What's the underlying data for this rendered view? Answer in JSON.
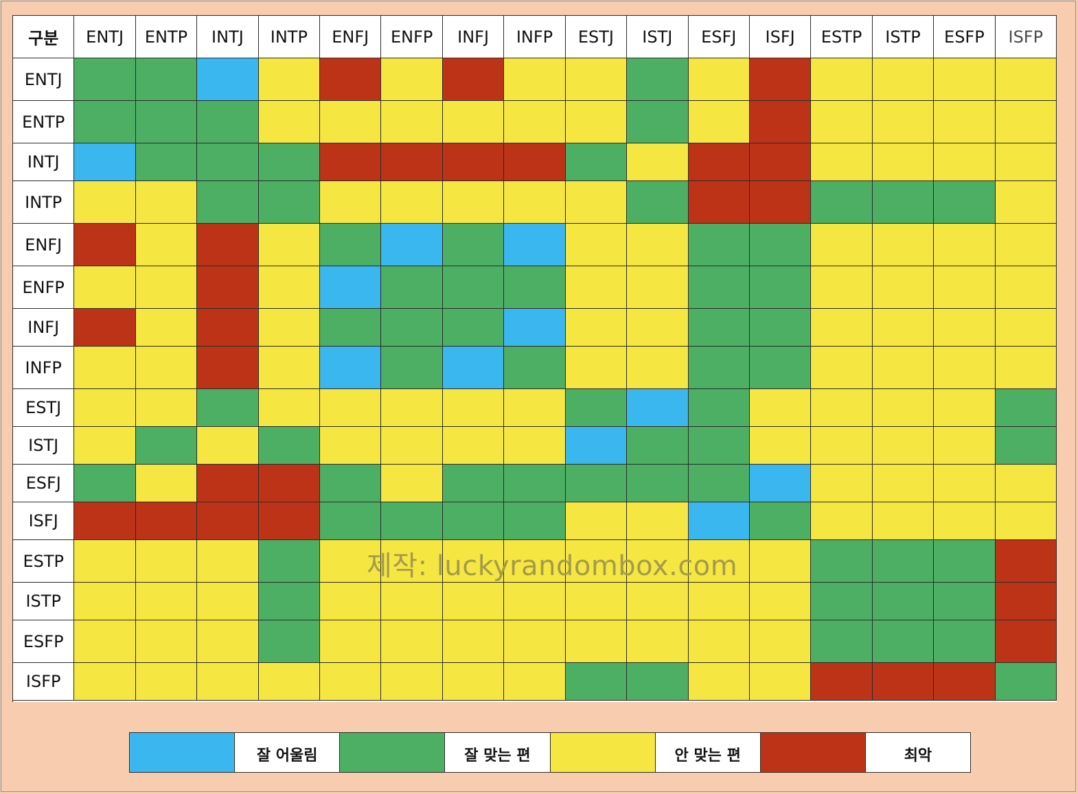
{
  "chart_data": {
    "type": "heatmap",
    "corner_label": "구분",
    "types": [
      "ENTJ",
      "ENTP",
      "INTJ",
      "INTP",
      "ENFJ",
      "ENFP",
      "INFJ",
      "INFP",
      "ESTJ",
      "ISTJ",
      "ESFJ",
      "ISFJ",
      "ESTP",
      "ISTP",
      "ESFP",
      "ISFP"
    ],
    "levels": [
      {
        "code": "B",
        "label": "잘 어울림",
        "color": "#3bb7f0"
      },
      {
        "code": "G",
        "label": "잘 맞는 편",
        "color": "#4caf64"
      },
      {
        "code": "Y",
        "label": "안 맞는 편",
        "color": "#f5e642"
      },
      {
        "code": "R",
        "label": "최악",
        "color": "#bc3318"
      }
    ],
    "matrix": [
      [
        "G",
        "G",
        "B",
        "Y",
        "R",
        "Y",
        "R",
        "Y",
        "Y",
        "G",
        "Y",
        "R",
        "Y",
        "Y",
        "Y",
        "Y"
      ],
      [
        "G",
        "G",
        "G",
        "Y",
        "Y",
        "Y",
        "Y",
        "Y",
        "Y",
        "G",
        "Y",
        "R",
        "Y",
        "Y",
        "Y",
        "Y"
      ],
      [
        "B",
        "G",
        "G",
        "G",
        "R",
        "R",
        "R",
        "R",
        "G",
        "Y",
        "R",
        "R",
        "Y",
        "Y",
        "Y",
        "Y"
      ],
      [
        "Y",
        "Y",
        "G",
        "G",
        "Y",
        "Y",
        "Y",
        "Y",
        "Y",
        "G",
        "R",
        "R",
        "G",
        "G",
        "G",
        "Y"
      ],
      [
        "R",
        "Y",
        "R",
        "Y",
        "G",
        "B",
        "G",
        "B",
        "Y",
        "Y",
        "G",
        "G",
        "Y",
        "Y",
        "Y",
        "Y"
      ],
      [
        "Y",
        "Y",
        "R",
        "Y",
        "B",
        "G",
        "G",
        "G",
        "Y",
        "Y",
        "G",
        "G",
        "Y",
        "Y",
        "Y",
        "Y"
      ],
      [
        "R",
        "Y",
        "R",
        "Y",
        "G",
        "G",
        "G",
        "B",
        "Y",
        "Y",
        "G",
        "G",
        "Y",
        "Y",
        "Y",
        "Y"
      ],
      [
        "Y",
        "Y",
        "R",
        "Y",
        "B",
        "G",
        "B",
        "G",
        "Y",
        "Y",
        "G",
        "G",
        "Y",
        "Y",
        "Y",
        "Y"
      ],
      [
        "Y",
        "Y",
        "G",
        "Y",
        "Y",
        "Y",
        "Y",
        "Y",
        "G",
        "B",
        "G",
        "Y",
        "Y",
        "Y",
        "Y",
        "G"
      ],
      [
        "Y",
        "G",
        "Y",
        "G",
        "Y",
        "Y",
        "Y",
        "Y",
        "B",
        "G",
        "G",
        "Y",
        "Y",
        "Y",
        "Y",
        "G"
      ],
      [
        "G",
        "Y",
        "R",
        "R",
        "G",
        "Y",
        "G",
        "G",
        "G",
        "G",
        "G",
        "B",
        "Y",
        "Y",
        "Y",
        "Y"
      ],
      [
        "R",
        "R",
        "R",
        "R",
        "G",
        "G",
        "G",
        "G",
        "Y",
        "Y",
        "B",
        "G",
        "Y",
        "Y",
        "Y",
        "Y"
      ],
      [
        "Y",
        "Y",
        "Y",
        "G",
        "Y",
        "Y",
        "Y",
        "Y",
        "Y",
        "Y",
        "Y",
        "Y",
        "G",
        "G",
        "G",
        "R"
      ],
      [
        "Y",
        "Y",
        "Y",
        "G",
        "Y",
        "Y",
        "Y",
        "Y",
        "Y",
        "Y",
        "Y",
        "Y",
        "G",
        "G",
        "G",
        "R"
      ],
      [
        "Y",
        "Y",
        "Y",
        "G",
        "Y",
        "Y",
        "Y",
        "Y",
        "Y",
        "Y",
        "Y",
        "Y",
        "G",
        "G",
        "G",
        "R"
      ],
      [
        "Y",
        "Y",
        "Y",
        "Y",
        "Y",
        "Y",
        "Y",
        "Y",
        "G",
        "G",
        "Y",
        "Y",
        "R",
        "R",
        "R",
        "G"
      ]
    ],
    "legend_position": "bottom",
    "watermark": "제작: luckyrandombox.com"
  }
}
